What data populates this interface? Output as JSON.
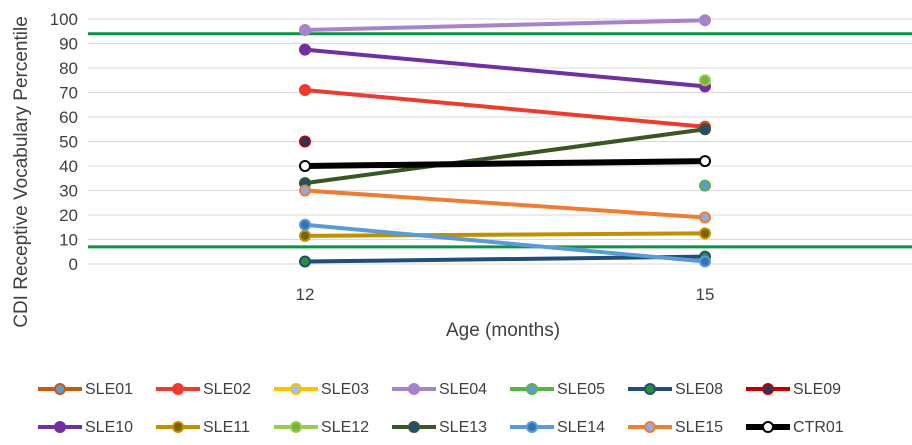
{
  "chart_data": {
    "type": "line",
    "title": "",
    "xlabel": "Age (months)",
    "ylabel": "CDI Receptive Vocabulary Percentile",
    "categories": [
      "12",
      "15"
    ],
    "ylim": [
      0,
      100
    ],
    "yticks": [
      "0",
      "10",
      "20",
      "30",
      "40",
      "50",
      "60",
      "70",
      "80",
      "90",
      "100"
    ],
    "grid": true,
    "legend_position": "bottom",
    "reference_lines": [
      {
        "y": 94,
        "color": "#0b9448"
      },
      {
        "y": 7,
        "color": "#0b9448"
      }
    ],
    "series": [
      {
        "name": "SLE01",
        "values": [
          null,
          null
        ],
        "color": "#c55a11",
        "marker": "#5b9bd5"
      },
      {
        "name": "SLE02",
        "values": [
          71,
          56
        ],
        "color": "#ee3b2f",
        "marker": "#ee3b2f"
      },
      {
        "name": "SLE03",
        "values": [
          null,
          null
        ],
        "color": "#ffc000",
        "marker": "#9ec1e8"
      },
      {
        "name": "SLE04",
        "values": [
          95.5,
          99.5
        ],
        "color": "#a784c9",
        "marker": "#a784c9"
      },
      {
        "name": "SLE05",
        "values": [
          null,
          32
        ],
        "color": "#5bb346",
        "marker": "#5b9bd5"
      },
      {
        "name": "SLE08",
        "values": [
          1,
          3
        ],
        "color": "#1f4e79",
        "marker": "#2e8b3b"
      },
      {
        "name": "SLE09",
        "values": [
          50,
          null
        ],
        "color": "#c00000",
        "marker": "#203864"
      },
      {
        "name": "SLE10",
        "values": [
          87.5,
          72.5
        ],
        "color": "#7030a0",
        "marker": "#7030a0"
      },
      {
        "name": "SLE11",
        "values": [
          11.5,
          12.5
        ],
        "color": "#bf9000",
        "marker": "#7f6000"
      },
      {
        "name": "SLE12",
        "values": [
          null,
          75
        ],
        "color": "#92d050",
        "marker": "#7fae3c"
      },
      {
        "name": "SLE13",
        "values": [
          33,
          55
        ],
        "color": "#385723",
        "marker": "#1f4e79"
      },
      {
        "name": "SLE14",
        "values": [
          16,
          1
        ],
        "color": "#5b9bd5",
        "marker": "#2e75b6"
      },
      {
        "name": "SLE15",
        "values": [
          30,
          19
        ],
        "color": "#ed7d31",
        "marker": "#8faadc"
      },
      {
        "name": "CTR01",
        "values": [
          40,
          42
        ],
        "color": "#000000",
        "marker": "#ffffff"
      }
    ]
  }
}
